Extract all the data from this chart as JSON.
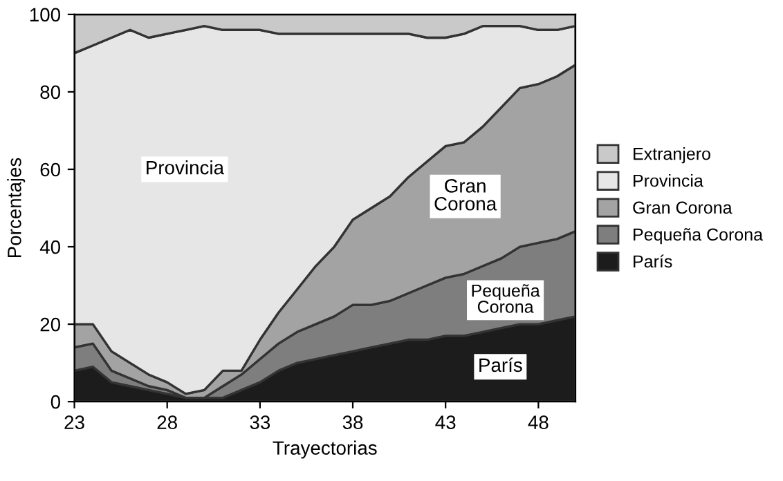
{
  "chart_data": {
    "type": "area",
    "stacked": true,
    "xlabel": "Trayectorias",
    "ylabel": "Porcentajes",
    "x": [
      23,
      24,
      25,
      26,
      27,
      28,
      29,
      30,
      31,
      32,
      33,
      34,
      35,
      36,
      37,
      38,
      39,
      40,
      41,
      42,
      43,
      44,
      45,
      46,
      47,
      48,
      49,
      50
    ],
    "series": [
      {
        "name": "París",
        "color": "#1c1c1c",
        "values": [
          8,
          9,
          5,
          4,
          3,
          2,
          1,
          1,
          1,
          3,
          5,
          8,
          10,
          11,
          12,
          13,
          14,
          15,
          16,
          16,
          17,
          17,
          18,
          19,
          20,
          20,
          21,
          22
        ]
      },
      {
        "name": "Pequeña Corona",
        "color": "#7e7e7e",
        "values": [
          6,
          6,
          3,
          2,
          1,
          1,
          0,
          0,
          3,
          4,
          6,
          7,
          8,
          9,
          10,
          12,
          11,
          11,
          12,
          14,
          15,
          16,
          17,
          18,
          20,
          21,
          21,
          22
        ]
      },
      {
        "name": "Gran Corona",
        "color": "#a3a3a3",
        "values": [
          6,
          5,
          5,
          4,
          3,
          2,
          1,
          2,
          4,
          1,
          5,
          8,
          11,
          15,
          18,
          22,
          25,
          27,
          30,
          32,
          34,
          34,
          36,
          39,
          41,
          41,
          42,
          43
        ]
      },
      {
        "name": "Provincia",
        "color": "#e6e6e6",
        "values": [
          70,
          72,
          81,
          86,
          87,
          90,
          94,
          94,
          88,
          88,
          80,
          72,
          66,
          60,
          55,
          48,
          45,
          42,
          37,
          32,
          28,
          28,
          26,
          21,
          16,
          14,
          12,
          10
        ]
      },
      {
        "name": "Extranjero",
        "color": "#c9c9c9",
        "values": [
          10,
          8,
          6,
          4,
          6,
          5,
          4,
          3,
          4,
          4,
          4,
          5,
          5,
          5,
          5,
          5,
          5,
          5,
          5,
          6,
          6,
          5,
          3,
          3,
          3,
          4,
          4,
          3
        ]
      }
    ],
    "annotations": [
      "Provincia",
      "Gran Corona",
      "Pequeña Corona",
      "París"
    ],
    "xlim": [
      23,
      50
    ],
    "xticks": [
      23,
      28,
      33,
      38,
      43,
      48
    ],
    "ylim": [
      0,
      100
    ],
    "yticks": [
      0,
      20,
      40,
      60,
      80,
      100
    ],
    "grid": false,
    "legend": "right"
  }
}
